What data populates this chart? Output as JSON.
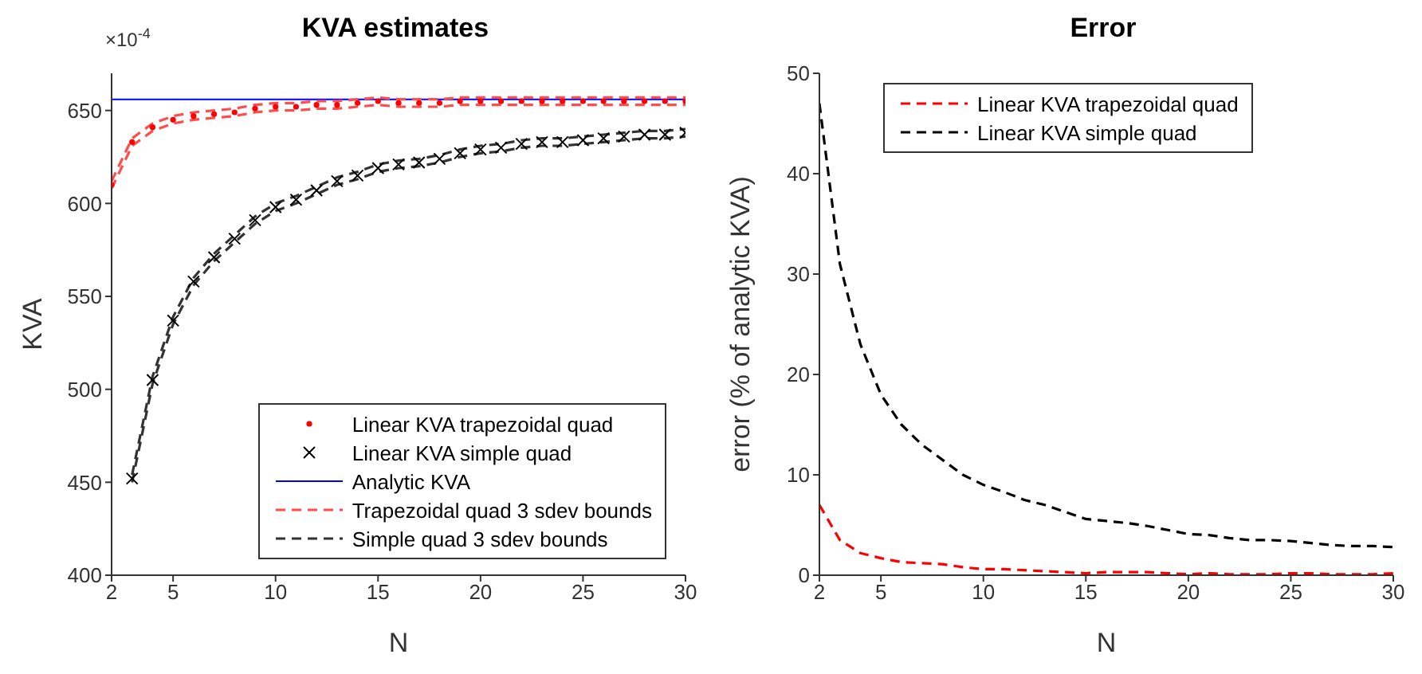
{
  "chart_data": [
    {
      "type": "line",
      "title": "KVA estimates",
      "xlabel": "N",
      "ylabel": "KVA",
      "annotations": [
        "×10$^{-4}$"
      ],
      "x": [
        2,
        3,
        4,
        5,
        6,
        7,
        8,
        9,
        10,
        11,
        12,
        13,
        14,
        15,
        16,
        17,
        18,
        19,
        20,
        21,
        22,
        23,
        24,
        25,
        26,
        27,
        28,
        29,
        30
      ],
      "xlim": [
        2,
        30
      ],
      "xticks": [
        2,
        5,
        10,
        15,
        20,
        25,
        30
      ],
      "ylim": [
        400,
        670
      ],
      "yticks": [
        400,
        450,
        500,
        550,
        600,
        650
      ],
      "legend": "bottom right",
      "series": [
        {
          "name": "Linear KVA trapezoidal quad",
          "type": "scatter",
          "marker": "circle",
          "color": "#ff0000",
          "values": [
            610,
            633,
            641,
            645,
            647,
            648,
            649,
            651,
            652,
            652,
            653,
            653,
            654,
            655,
            654,
            654,
            654,
            655,
            655,
            655,
            655,
            655,
            655,
            655,
            655,
            655,
            655,
            655,
            655
          ]
        },
        {
          "name": "Linear KVA simple quad",
          "type": "scatter",
          "marker": "cross",
          "color": "#000000",
          "values": [
            null,
            452,
            505,
            537,
            558,
            571,
            581,
            591,
            598,
            602,
            607,
            612,
            615,
            619,
            621,
            622,
            624,
            627,
            629,
            630,
            632,
            633,
            633,
            634,
            635,
            636,
            637,
            637,
            638
          ]
        },
        {
          "name": "Analytic KVA",
          "type": "line",
          "line_style": "solid",
          "color": "#0000ff",
          "values": [
            656,
            656,
            656,
            656,
            656,
            656,
            656,
            656,
            656,
            656,
            656,
            656,
            656,
            656,
            656,
            656,
            656,
            656,
            656,
            656,
            656,
            656,
            656,
            656,
            656,
            656,
            656,
            656,
            656
          ]
        },
        {
          "name": "Trapezoidal quad 3 sdev bounds",
          "type": "line",
          "line_style": "dashed",
          "color": "#ff4d4d",
          "values": [
            612,
            635,
            643,
            647,
            649,
            650,
            651,
            653,
            654,
            654,
            655,
            655,
            656,
            657,
            656,
            656,
            656,
            657,
            657,
            657,
            657,
            657,
            657,
            657,
            657,
            657,
            657,
            657,
            657
          ]
        },
        {
          "type": "line",
          "line_style": "dashed",
          "color": "#ff4d4d",
          "values": [
            608,
            631,
            639,
            643,
            645,
            646,
            647,
            649,
            650,
            650,
            651,
            651,
            652,
            653,
            652,
            652,
            652,
            653,
            653,
            653,
            653,
            653,
            653,
            653,
            653,
            653,
            653,
            653,
            653
          ]
        },
        {
          "name": "Simple quad 3 sdev bounds",
          "type": "line",
          "line_style": "dashed",
          "color": "#333333",
          "values": [
            null,
            454,
            507,
            539,
            560,
            573,
            583,
            593,
            600,
            604,
            609,
            614,
            617,
            621,
            623,
            624,
            626,
            629,
            631,
            632,
            634,
            635,
            635,
            636,
            637,
            638,
            639,
            639,
            640
          ]
        },
        {
          "type": "line",
          "line_style": "dashed",
          "color": "#333333",
          "values": [
            null,
            450,
            503,
            535,
            556,
            569,
            579,
            589,
            596,
            600,
            605,
            610,
            613,
            617,
            619,
            620,
            622,
            625,
            627,
            628,
            630,
            631,
            631,
            632,
            633,
            634,
            635,
            635,
            636
          ]
        }
      ]
    },
    {
      "type": "line",
      "title": "Error",
      "xlabel": "N",
      "ylabel": "error (% of analytic KVA)",
      "x": [
        2,
        3,
        4,
        5,
        6,
        7,
        8,
        9,
        10,
        11,
        12,
        13,
        14,
        15,
        16,
        17,
        18,
        19,
        20,
        21,
        22,
        23,
        24,
        25,
        26,
        27,
        28,
        29,
        30
      ],
      "xlim": [
        2,
        30
      ],
      "xticks": [
        2,
        5,
        10,
        15,
        20,
        25,
        30
      ],
      "ylim": [
        0,
        50
      ],
      "yticks": [
        0,
        10,
        20,
        30,
        40,
        50
      ],
      "legend": "top",
      "line_style": "dashed",
      "series": [
        {
          "name": "Linear KVA trapezoidal quad",
          "color": "#ff0000",
          "values": [
            7,
            3.5,
            2.2,
            1.7,
            1.3,
            1.2,
            1.1,
            0.8,
            0.6,
            0.6,
            0.5,
            0.4,
            0.3,
            0.2,
            0.3,
            0.3,
            0.3,
            0.2,
            0.1,
            0.2,
            0.1,
            0.1,
            0.1,
            0.2,
            0.2,
            0.1,
            0.1,
            0.1,
            0.2
          ]
        },
        {
          "name": "Linear KVA simple quad",
          "color": "#000000",
          "values": [
            47,
            31,
            23,
            18,
            15,
            13,
            11.5,
            10,
            9,
            8.3,
            7.5,
            7,
            6.3,
            5.6,
            5.4,
            5.2,
            4.9,
            4.5,
            4.1,
            4,
            3.7,
            3.5,
            3.5,
            3.4,
            3.2,
            3,
            2.9,
            2.9,
            2.8
          ]
        }
      ]
    }
  ]
}
